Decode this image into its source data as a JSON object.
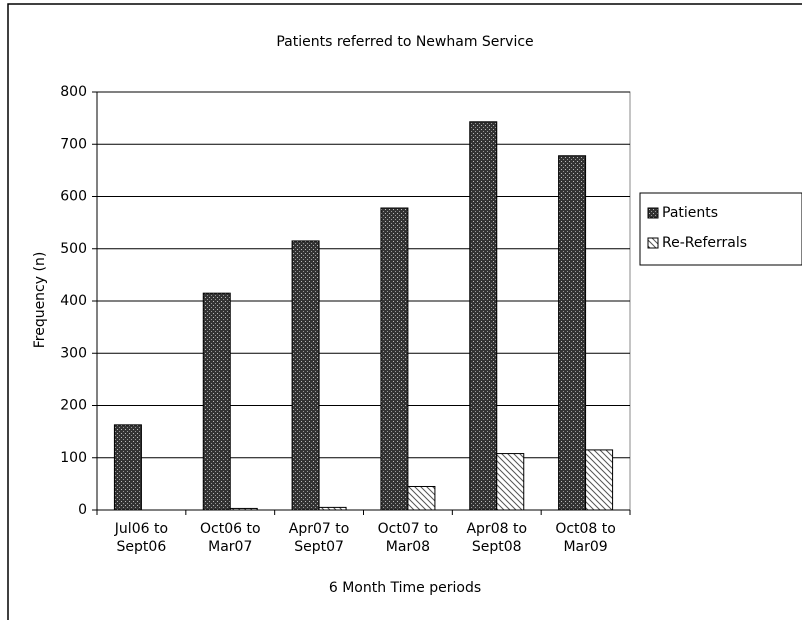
{
  "chart_data": {
    "type": "bar",
    "title": "Patients referred to Newham Service",
    "x_label": "6 Month Time periods",
    "y_label": "Frequency (n)",
    "categories": [
      "Jul06 to Sept06",
      "Oct06 to Mar07",
      "Apr07 to Sept07",
      "Oct07 to Mar08",
      "Apr08 to Sept08",
      "Oct08 to Mar09"
    ],
    "series": [
      {
        "name": "Patients",
        "color": "#333333",
        "values": [
          163,
          415,
          515,
          578,
          743,
          678
        ]
      },
      {
        "name": "Re-Referrals",
        "color": "#ffffff",
        "values": [
          0,
          3,
          5,
          45,
          108,
          115
        ]
      }
    ],
    "ylim": [
      0,
      800
    ],
    "yticks": [
      0,
      100,
      200,
      300,
      400,
      500,
      600,
      700,
      800
    ],
    "grid": true,
    "legend": "right"
  }
}
